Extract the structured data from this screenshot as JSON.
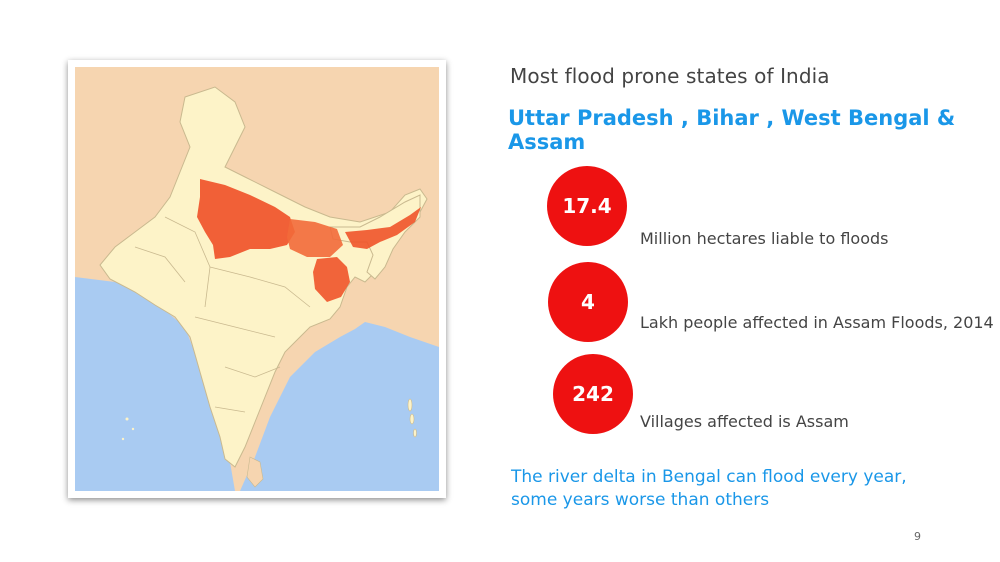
{
  "slide": {
    "subtitle": "Most flood prone states of India",
    "headline": "Uttar Pradesh , Bihar , West Bengal & Assam",
    "stats": [
      {
        "value": "17.4",
        "label": "Million hectares liable to floods"
      },
      {
        "value": "4",
        "label": "Lakh people affected in Assam Floods, 2014"
      },
      {
        "value": "242",
        "label": "Villages affected is Assam"
      }
    ],
    "footnote": [
      "The river delta in Bengal can flood every year,",
      "some years worse than others"
    ],
    "page_number": "9"
  },
  "map": {
    "land_color": "#fdf3c8",
    "neighbor_color": "#f6d5b0",
    "sea_color": "#a9cbf2",
    "highlight_color": "#f0542a",
    "highlighted_states": [
      "Uttar Pradesh",
      "Bihar",
      "West Bengal",
      "Assam"
    ]
  },
  "colors": {
    "accent": "#1a97e8",
    "stat_circle": "#ee1111",
    "body_text": "#444444"
  }
}
